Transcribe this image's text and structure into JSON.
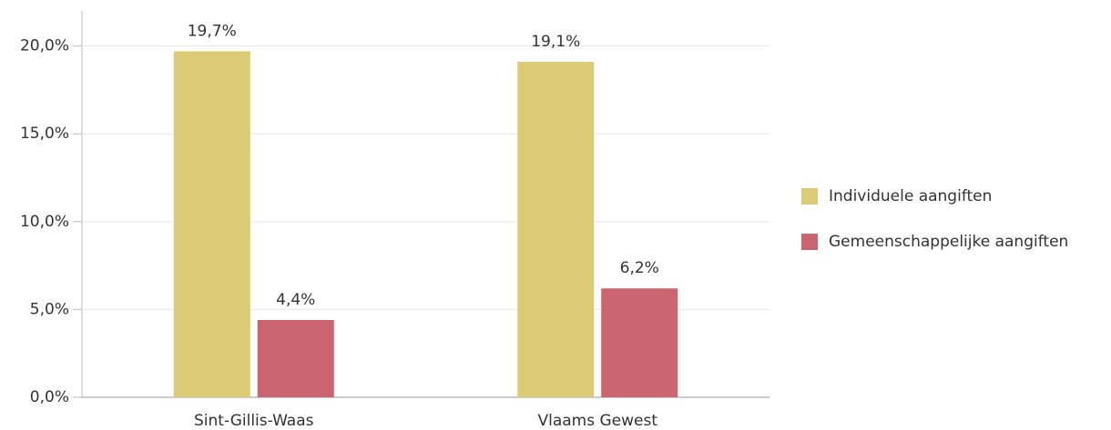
{
  "chart_data": {
    "type": "bar",
    "categories": [
      "Sint-Gillis-Waas",
      "Vlaams Gewest"
    ],
    "series": [
      {
        "name": "Individuele aangiften",
        "color": "#dccb74",
        "values": [
          19.7,
          19.1
        ],
        "value_labels": [
          "19,7%",
          "19,1%"
        ]
      },
      {
        "name": "Gemeenschappelijke aangiften",
        "color": "#cc6370",
        "values": [
          4.4,
          6.2
        ],
        "value_labels": [
          "4,4%",
          "6,2%"
        ]
      }
    ],
    "ylim": [
      0,
      22
    ],
    "yticks": [
      {
        "value": 0,
        "label": "0,0%"
      },
      {
        "value": 5,
        "label": "5,0%"
      },
      {
        "value": 10,
        "label": "10,0%"
      },
      {
        "value": 15,
        "label": "15,0%"
      },
      {
        "value": 20,
        "label": "20,0%"
      }
    ],
    "grid": true,
    "legend": "right"
  }
}
